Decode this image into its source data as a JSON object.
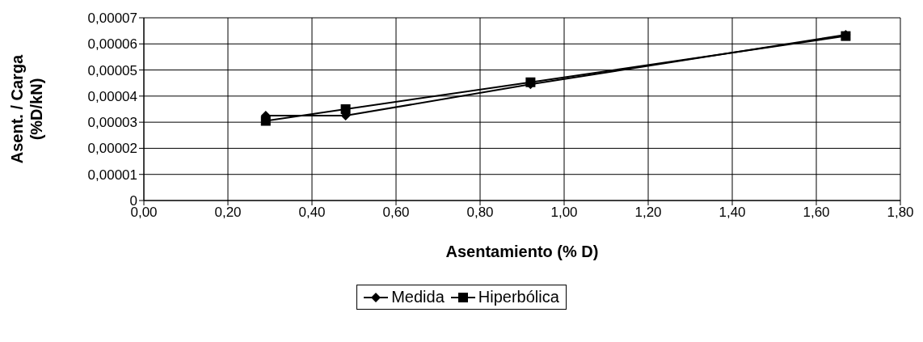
{
  "chart_data": {
    "type": "line",
    "xlabel": "Asentamiento (% D)",
    "ylabel": "Asent. / Carga\n(%D/kN)",
    "series": [
      {
        "name": "Medida",
        "color": "#000000",
        "marker": "diamond",
        "x": [
          0.29,
          0.48,
          0.92,
          1.67
        ],
        "values": [
          3.25e-05,
          3.25e-05,
          4.45e-05,
          6.35e-05
        ]
      },
      {
        "name": "Hiperbólica",
        "color": "#000000",
        "marker": "square",
        "x": [
          0.29,
          0.48,
          0.92,
          1.67
        ],
        "values": [
          3.05e-05,
          3.5e-05,
          4.53e-05,
          6.3e-05
        ]
      }
    ],
    "xlim": [
      0,
      1.8
    ],
    "xticks": [
      {
        "value": 0,
        "label": "0,00"
      },
      {
        "value": 0.2,
        "label": "0,20"
      },
      {
        "value": 0.4,
        "label": "0,40"
      },
      {
        "value": 0.6,
        "label": "0,60"
      },
      {
        "value": 0.8,
        "label": "0,80"
      },
      {
        "value": 1,
        "label": "1,00"
      },
      {
        "value": 1.2,
        "label": "1,20"
      },
      {
        "value": 1.4,
        "label": "1,40"
      },
      {
        "value": 1.6,
        "label": "1,60"
      },
      {
        "value": 1.8,
        "label": "1,80"
      }
    ],
    "ylim": [
      0,
      7e-05
    ],
    "yticks": [
      0,
      {
        "value": 1e-05,
        "label": "0,00001"
      },
      {
        "value": 2e-05,
        "label": "0,00002"
      },
      {
        "value": 3e-05,
        "label": "0,00003"
      },
      {
        "value": 4e-05,
        "label": "0,00004"
      },
      {
        "value": 5e-05,
        "label": "0,00005"
      },
      {
        "value": 6e-05,
        "label": "0,00006"
      },
      {
        "value": 7e-05,
        "label": "0,00007"
      }
    ],
    "grid": true,
    "legend": "bottom",
    "line_style": "solid"
  }
}
